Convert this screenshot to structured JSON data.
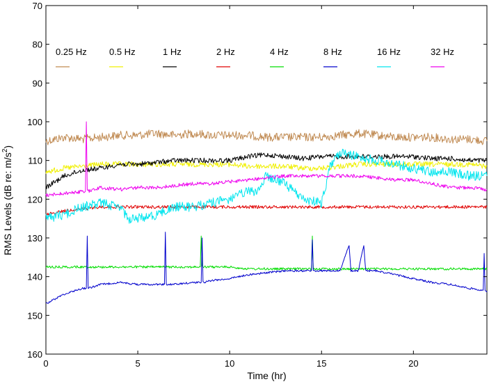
{
  "chart_data": {
    "type": "line",
    "xlabel": "Time (hr)",
    "ylabel_main": "RMS Levels (dB re: m/s",
    "ylabel_sup": "2",
    "ylabel_tail": ")",
    "xlim": [
      0,
      24
    ],
    "ylim": [
      160,
      70
    ],
    "y_inverted": true,
    "grid": false,
    "legend_position": "top, inside axes, single row",
    "x_ticks": [
      0,
      5,
      10,
      15,
      20
    ],
    "y_ticks": [
      70,
      80,
      90,
      100,
      110,
      120,
      130,
      140,
      150,
      160
    ],
    "series": [
      {
        "name": "0.25 Hz",
        "color": "#c08a52",
        "points": [
          [
            0,
            105
          ],
          [
            1,
            104
          ],
          [
            2,
            104.5
          ],
          [
            3,
            104
          ],
          [
            4,
            103.5
          ],
          [
            5,
            103.5
          ],
          [
            6,
            103
          ],
          [
            7,
            103.5
          ],
          [
            8,
            103
          ],
          [
            9,
            103.5
          ],
          [
            10,
            103.5
          ],
          [
            11,
            103.5
          ],
          [
            12,
            104
          ],
          [
            13,
            104
          ],
          [
            14,
            104
          ],
          [
            15,
            104
          ],
          [
            16,
            103.5
          ],
          [
            17,
            103
          ],
          [
            18,
            103.5
          ],
          [
            19,
            104
          ],
          [
            20,
            104
          ],
          [
            21,
            104
          ],
          [
            22,
            104.5
          ],
          [
            23,
            104.5
          ],
          [
            24,
            105
          ]
        ]
      },
      {
        "name": "0.5 Hz",
        "color": "#f0f000",
        "points": [
          [
            0,
            113
          ],
          [
            1,
            112
          ],
          [
            2,
            111.5
          ],
          [
            3,
            111
          ],
          [
            4,
            111
          ],
          [
            5,
            111
          ],
          [
            6,
            111
          ],
          [
            7,
            111
          ],
          [
            8,
            111
          ],
          [
            9,
            111
          ],
          [
            10,
            111
          ],
          [
            11,
            111.5
          ],
          [
            12,
            111.5
          ],
          [
            13,
            111.5
          ],
          [
            14,
            112
          ],
          [
            15,
            112
          ],
          [
            16,
            111.5
          ],
          [
            17,
            111
          ],
          [
            18,
            111
          ],
          [
            19,
            111
          ],
          [
            20,
            111
          ],
          [
            21,
            111
          ],
          [
            22,
            111
          ],
          [
            23,
            111
          ],
          [
            24,
            111.5
          ]
        ]
      },
      {
        "name": "1 Hz",
        "color": "#000000",
        "points": [
          [
            0,
            117
          ],
          [
            1,
            114
          ],
          [
            2,
            112.5
          ],
          [
            3,
            112
          ],
          [
            4,
            111
          ],
          [
            5,
            111
          ],
          [
            6,
            110.5
          ],
          [
            7,
            110
          ],
          [
            8,
            110
          ],
          [
            9,
            110
          ],
          [
            10,
            110
          ],
          [
            11,
            109
          ],
          [
            12,
            108.5
          ],
          [
            13,
            109
          ],
          [
            14,
            109.5
          ],
          [
            15,
            109
          ],
          [
            16,
            109
          ],
          [
            17,
            109
          ],
          [
            18,
            109
          ],
          [
            19,
            109
          ],
          [
            20,
            109
          ],
          [
            21,
            109.5
          ],
          [
            22,
            109.5
          ],
          [
            23,
            110
          ],
          [
            24,
            110
          ]
        ]
      },
      {
        "name": "2 Hz",
        "color": "#e00000",
        "points": [
          [
            0,
            124
          ],
          [
            1,
            123
          ],
          [
            2,
            122.5
          ],
          [
            3,
            122
          ],
          [
            4,
            122
          ],
          [
            5,
            122
          ],
          [
            6,
            122
          ],
          [
            7,
            122
          ],
          [
            8,
            122
          ],
          [
            9,
            122
          ],
          [
            10,
            122
          ],
          [
            11,
            122
          ],
          [
            12,
            122
          ],
          [
            13,
            122
          ],
          [
            14,
            122
          ],
          [
            15,
            122
          ],
          [
            16,
            122
          ],
          [
            17,
            122
          ],
          [
            18,
            122
          ],
          [
            19,
            122
          ],
          [
            20,
            122
          ],
          [
            21,
            122
          ],
          [
            22,
            122
          ],
          [
            23,
            122
          ],
          [
            24,
            122
          ]
        ]
      },
      {
        "name": "4 Hz",
        "color": "#00dd00",
        "points": [
          [
            0,
            137.5
          ],
          [
            1,
            137.5
          ],
          [
            2,
            137.5
          ],
          [
            3,
            137.5
          ],
          [
            4,
            137.5
          ],
          [
            5,
            137.5
          ],
          [
            6,
            137.5
          ],
          [
            7,
            137.5
          ],
          [
            8,
            137.5
          ],
          [
            8.4,
            137.5
          ],
          [
            8.45,
            129.5
          ],
          [
            8.5,
            137.5
          ],
          [
            9,
            137.5
          ],
          [
            10,
            137.5
          ],
          [
            11,
            138
          ],
          [
            12,
            138
          ],
          [
            13,
            138
          ],
          [
            14,
            138
          ],
          [
            14.45,
            138
          ],
          [
            14.5,
            129.5
          ],
          [
            14.55,
            138
          ],
          [
            15,
            138
          ],
          [
            16,
            138
          ],
          [
            17,
            138
          ],
          [
            18,
            138
          ],
          [
            19,
            138
          ],
          [
            20,
            138
          ],
          [
            21,
            138
          ],
          [
            22,
            138
          ],
          [
            23,
            138
          ],
          [
            24,
            138
          ]
        ]
      },
      {
        "name": "8 Hz",
        "color": "#0000cc",
        "points": [
          [
            0,
            147
          ],
          [
            1,
            144.5
          ],
          [
            2,
            143
          ],
          [
            2.2,
            143
          ],
          [
            2.25,
            129.5
          ],
          [
            2.3,
            143
          ],
          [
            3,
            142
          ],
          [
            4,
            141.5
          ],
          [
            5,
            142
          ],
          [
            6,
            142
          ],
          [
            6.45,
            142
          ],
          [
            6.5,
            128.5
          ],
          [
            6.55,
            142
          ],
          [
            7,
            142
          ],
          [
            8,
            141.5
          ],
          [
            8.45,
            141.5
          ],
          [
            8.5,
            130
          ],
          [
            8.55,
            141.5
          ],
          [
            9,
            141
          ],
          [
            10,
            140.5
          ],
          [
            11,
            139.5
          ],
          [
            12,
            139
          ],
          [
            13,
            138.5
          ],
          [
            14,
            138.5
          ],
          [
            14.45,
            138.5
          ],
          [
            14.5,
            130.5
          ],
          [
            14.55,
            138.5
          ],
          [
            15,
            138.5
          ],
          [
            16,
            138.5
          ],
          [
            16.5,
            132
          ],
          [
            16.6,
            138.5
          ],
          [
            17,
            138.5
          ],
          [
            17.3,
            132
          ],
          [
            17.4,
            138.5
          ],
          [
            18,
            138.5
          ],
          [
            19,
            139.5
          ],
          [
            20,
            140.5
          ],
          [
            21,
            141.5
          ],
          [
            22,
            142
          ],
          [
            23,
            143
          ],
          [
            23.8,
            143.5
          ],
          [
            23.85,
            134
          ],
          [
            23.9,
            143.5
          ],
          [
            24,
            144
          ]
        ]
      },
      {
        "name": "16 Hz",
        "color": "#00e5ee",
        "points": [
          [
            0,
            125
          ],
          [
            1,
            124
          ],
          [
            2,
            122
          ],
          [
            3,
            121
          ],
          [
            4,
            122
          ],
          [
            4.5,
            125
          ],
          [
            5,
            125
          ],
          [
            6,
            124
          ],
          [
            7,
            122
          ],
          [
            8,
            122
          ],
          [
            9,
            121
          ],
          [
            10,
            120
          ],
          [
            11,
            118
          ],
          [
            11.5,
            118
          ],
          [
            12,
            114
          ],
          [
            13,
            116
          ],
          [
            14,
            120
          ],
          [
            15,
            121
          ],
          [
            15.5,
            111
          ],
          [
            16,
            108
          ],
          [
            17,
            109
          ],
          [
            18,
            110
          ],
          [
            19,
            111
          ],
          [
            20,
            112
          ],
          [
            21,
            113
          ],
          [
            22,
            113
          ],
          [
            23,
            114
          ],
          [
            24,
            114
          ]
        ]
      },
      {
        "name": "32 Hz",
        "color": "#ee00ee",
        "points": [
          [
            0,
            119
          ],
          [
            1,
            118.5
          ],
          [
            2,
            118
          ],
          [
            2.15,
            118
          ],
          [
            2.2,
            100
          ],
          [
            2.25,
            118
          ],
          [
            3,
            117
          ],
          [
            4,
            117.5
          ],
          [
            5,
            117
          ],
          [
            6,
            117
          ],
          [
            7,
            116.5
          ],
          [
            8,
            116
          ],
          [
            9,
            116
          ],
          [
            10,
            115.5
          ],
          [
            11,
            115
          ],
          [
            12,
            114.5
          ],
          [
            13,
            114
          ],
          [
            14,
            114
          ],
          [
            15,
            114
          ],
          [
            16,
            114
          ],
          [
            17,
            114
          ],
          [
            18,
            114.5
          ],
          [
            19,
            115
          ],
          [
            20,
            115
          ],
          [
            21,
            116
          ],
          [
            22,
            117
          ],
          [
            23,
            117
          ],
          [
            24,
            117.5
          ]
        ]
      }
    ]
  }
}
